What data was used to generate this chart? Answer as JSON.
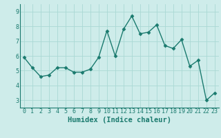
{
  "x": [
    0,
    1,
    2,
    3,
    4,
    5,
    6,
    7,
    8,
    9,
    10,
    11,
    12,
    13,
    14,
    15,
    16,
    17,
    18,
    19,
    20,
    21,
    22,
    23
  ],
  "y": [
    5.9,
    5.2,
    4.6,
    4.7,
    5.2,
    5.2,
    4.9,
    4.9,
    5.1,
    5.9,
    7.7,
    6.0,
    7.8,
    8.7,
    7.5,
    7.6,
    8.1,
    6.7,
    6.5,
    7.1,
    5.3,
    5.7,
    3.0,
    3.5
  ],
  "line_color": "#1a7a6e",
  "marker": "D",
  "marker_size": 2.5,
  "bg_color": "#ceecea",
  "grid_color": "#aad8d4",
  "xlabel": "Humidex (Indice chaleur)",
  "ylim": [
    2.5,
    9.5
  ],
  "xlim": [
    -0.5,
    23.5
  ],
  "yticks": [
    3,
    4,
    5,
    6,
    7,
    8,
    9
  ],
  "xticks": [
    0,
    1,
    2,
    3,
    4,
    5,
    6,
    7,
    8,
    9,
    10,
    11,
    12,
    13,
    14,
    15,
    16,
    17,
    18,
    19,
    20,
    21,
    22,
    23
  ],
  "xlabel_fontsize": 7.5,
  "tick_fontsize": 6.0,
  "line_width": 1.0
}
